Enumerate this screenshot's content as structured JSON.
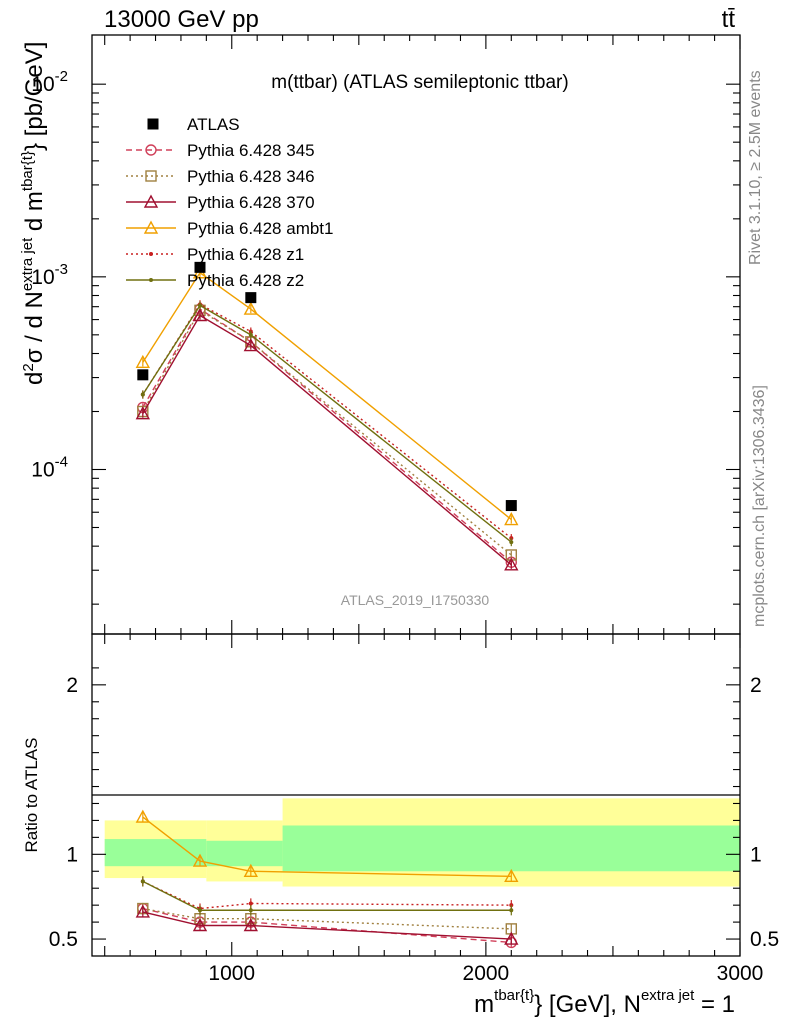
{
  "header": {
    "left": "13000 GeV pp",
    "right": "tt̄"
  },
  "side_labels": {
    "rivet": "Rivet 3.1.10, ≥ 2.5M events",
    "mcplots": "mcplots.cern.ch [arXiv:1306.3436]"
  },
  "chart_data": [
    {
      "type": "line",
      "panel": "main",
      "title": "m(ttbar) (ATLAS semileptonic ttbar)",
      "watermark": "ATLAS_2019_I1750330",
      "ylabel": "d²σ / d N^{extra jet} d m^{tbar{t}} [pb/GeV]",
      "yscale": "log",
      "ylim": [
        1.4e-05,
        0.018
      ],
      "xlim": [
        450,
        3000
      ],
      "ytick_labels": [
        "10^-2",
        "10^-3",
        "10^-4"
      ],
      "legend_placement": "top-left",
      "data": {
        "name": "ATLAS",
        "x": [
          650,
          875,
          1075,
          2100
        ],
        "y": [
          0.00031,
          0.00112,
          0.00078,
          6.5e-05
        ]
      },
      "series": [
        {
          "name": "Pythia 6.428 345",
          "color": "#d0405a",
          "dash": "6,4",
          "marker": "circle",
          "x": [
            650,
            875,
            1075,
            2100
          ],
          "y": [
            0.00021,
            0.00068,
            0.00046,
            3.3e-05
          ]
        },
        {
          "name": "Pythia 6.428 346",
          "color": "#a08040",
          "dash": "2,3",
          "marker": "square",
          "x": [
            650,
            875,
            1075,
            2100
          ],
          "y": [
            0.0002,
            0.00067,
            0.00046,
            3.6e-05
          ]
        },
        {
          "name": "Pythia 6.428 370",
          "color": "#a01030",
          "dash": "",
          "marker": "triangle",
          "x": [
            650,
            875,
            1075,
            2100
          ],
          "y": [
            0.000195,
            0.00063,
            0.00044,
            3.2e-05
          ]
        },
        {
          "name": "Pythia 6.428 ambt1",
          "color": "#f0a000",
          "dash": "",
          "marker": "triangle",
          "x": [
            650,
            875,
            1075,
            2100
          ],
          "y": [
            0.00036,
            0.00105,
            0.00068,
            5.5e-05
          ]
        },
        {
          "name": "Pythia 6.428 z1",
          "color": "#c82020",
          "dash": "2,3",
          "marker": "dot",
          "x": [
            650,
            875,
            1075,
            2100
          ],
          "y": [
            0.000245,
            0.00072,
            0.00052,
            4.4e-05
          ]
        },
        {
          "name": "Pythia 6.428 z2",
          "color": "#707010",
          "dash": "",
          "marker": "dot",
          "x": [
            650,
            875,
            1075,
            2100
          ],
          "y": [
            0.000245,
            0.00071,
            0.0005,
            4.2e-05
          ]
        }
      ]
    },
    {
      "type": "line",
      "panel": "ratio",
      "ylabel": "Ratio to ATLAS",
      "xlabel": "m^{tbar{t}} [GeV], N^{extra jet} = 1",
      "ylim": [
        0.4,
        2.3
      ],
      "xlim": [
        450,
        3000
      ],
      "yticks": [
        "2",
        "1",
        "0.5"
      ],
      "xticks": [
        "1000",
        "2000",
        "3000"
      ],
      "bands": [
        {
          "x": [
            450,
            900
          ],
          "yellow": [
            0.86,
            1.2
          ],
          "green": [
            0.93,
            1.09
          ]
        },
        {
          "x": [
            900,
            1200
          ],
          "yellow": [
            0.84,
            1.2
          ],
          "green": [
            0.93,
            1.08
          ]
        },
        {
          "x": [
            1200,
            3000
          ],
          "yellow": [
            0.81,
            1.33
          ],
          "green": [
            0.9,
            1.17
          ]
        }
      ],
      "series": [
        {
          "name": "Pythia 6.428 345",
          "color": "#d0405a",
          "dash": "6,4",
          "marker": "circle",
          "x": [
            650,
            875,
            1075,
            2100
          ],
          "y": [
            0.68,
            0.6,
            0.6,
            0.48
          ]
        },
        {
          "name": "Pythia 6.428 346",
          "color": "#a08040",
          "dash": "2,3",
          "marker": "square",
          "x": [
            650,
            875,
            1075,
            2100
          ],
          "y": [
            0.68,
            0.62,
            0.62,
            0.56
          ]
        },
        {
          "name": "Pythia 6.428 370",
          "color": "#a01030",
          "dash": "",
          "marker": "triangle",
          "x": [
            650,
            875,
            1075,
            2100
          ],
          "y": [
            0.66,
            0.58,
            0.58,
            0.5
          ]
        },
        {
          "name": "Pythia 6.428 ambt1",
          "color": "#f0a000",
          "dash": "",
          "marker": "triangle",
          "x": [
            650,
            875,
            1075,
            2100
          ],
          "y": [
            1.22,
            0.96,
            0.9,
            0.87
          ]
        },
        {
          "name": "Pythia 6.428 z1",
          "color": "#c82020",
          "dash": "2,3",
          "marker": "dot",
          "x": [
            650,
            875,
            1075,
            2100
          ],
          "y": [
            0.84,
            0.68,
            0.71,
            0.7
          ]
        },
        {
          "name": "Pythia 6.428 z2",
          "color": "#707010",
          "dash": "",
          "marker": "dot",
          "x": [
            650,
            875,
            1075,
            2100
          ],
          "y": [
            0.84,
            0.67,
            0.67,
            0.67
          ]
        }
      ]
    }
  ]
}
